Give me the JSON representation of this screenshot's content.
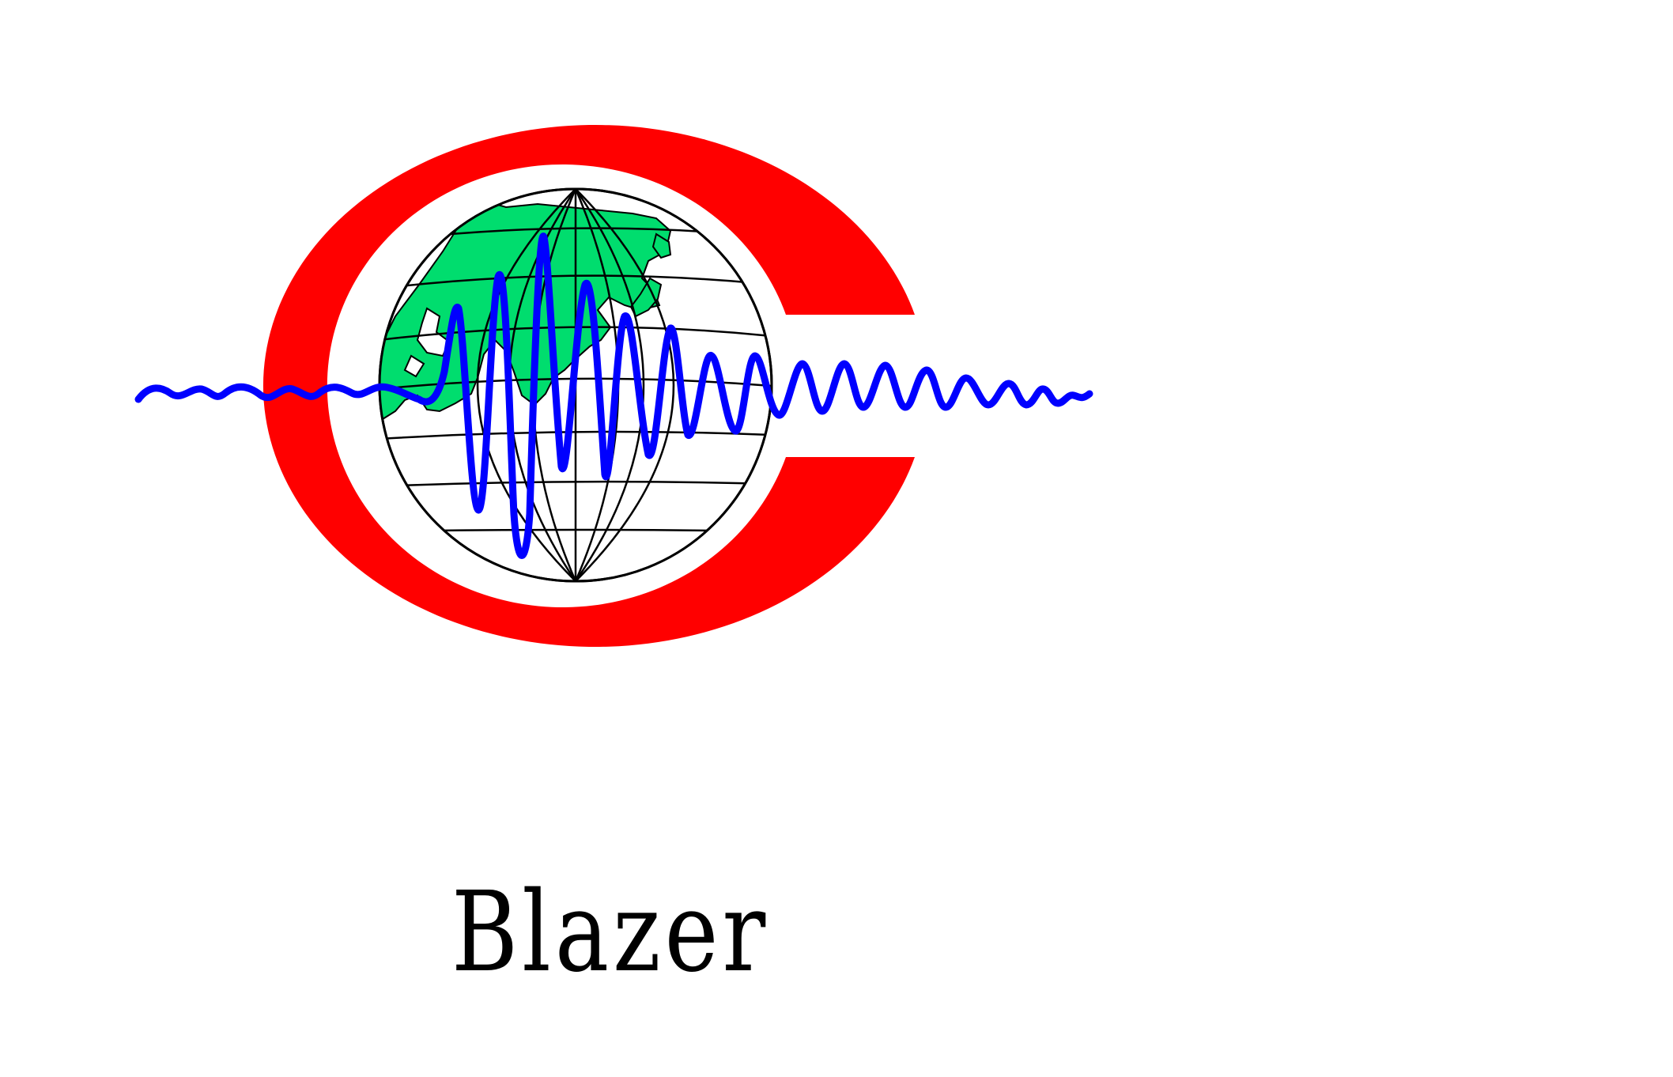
{
  "brand": {
    "name": "Blazer"
  },
  "logo": {
    "icon": "seismic-wave-globe-logo",
    "colors": {
      "ring": "#ff0000",
      "wave": "#0000ff",
      "land": "#00dd6e",
      "grid": "#000000",
      "background": "#ffffff"
    }
  }
}
